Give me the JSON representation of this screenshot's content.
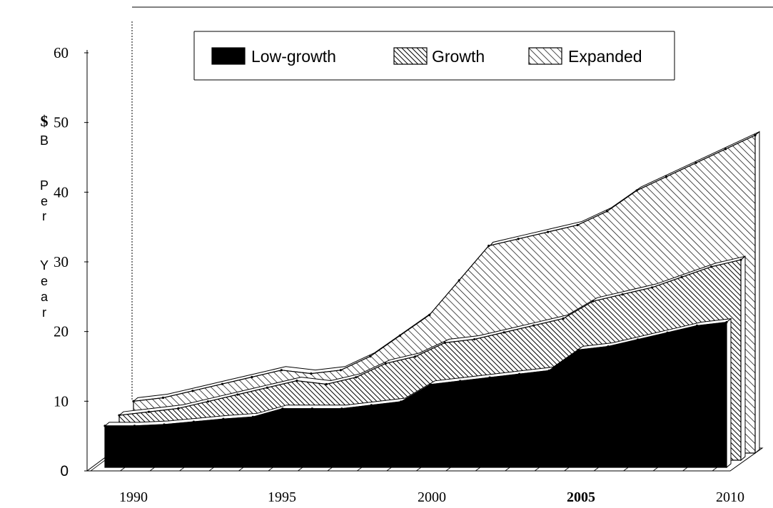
{
  "chart_data": {
    "type": "area",
    "title": "",
    "xlabel": "",
    "ylabel": "$B Per Year",
    "ylim": [
      0,
      60
    ],
    "yticks": [
      "0",
      "10",
      "20",
      "30",
      "40",
      "50",
      "60"
    ],
    "xticks": [
      "1990",
      "1995",
      "2000",
      "2005",
      "2010"
    ],
    "x": [
      1989,
      1990,
      1991,
      1992,
      1993,
      1994,
      1995,
      1996,
      1997,
      1998,
      1999,
      2000,
      2001,
      2002,
      2003,
      2004,
      2005,
      2006,
      2007,
      2008,
      2009,
      2010
    ],
    "legend_position": "top",
    "grid": false,
    "stacking": "overlapping 3D layers",
    "series": [
      {
        "name": "Low-growth",
        "fill": "#000000",
        "values": [
          6,
          6,
          6.2,
          6.6,
          7,
          7.3,
          8.5,
          8.5,
          8.5,
          9,
          9.5,
          12,
          12.5,
          13,
          13.5,
          14,
          17,
          17.5,
          18.5,
          19.5,
          20.5,
          21
        ]
      },
      {
        "name": "Growth",
        "fill": "hatch-dense",
        "values": [
          6.5,
          7,
          7.5,
          8.5,
          9.5,
          10.5,
          11.5,
          11,
          12,
          14,
          15,
          17,
          17.5,
          18.5,
          19.5,
          20.5,
          23,
          24,
          25,
          26.5,
          28,
          29
        ]
      },
      {
        "name": "Expanded",
        "fill": "hatch-sparse",
        "values": [
          7.5,
          8,
          9,
          10,
          11,
          12,
          11.5,
          12,
          14,
          17,
          20,
          25,
          30,
          31,
          32,
          33,
          35,
          38,
          40,
          42,
          44,
          46
        ]
      }
    ]
  }
}
